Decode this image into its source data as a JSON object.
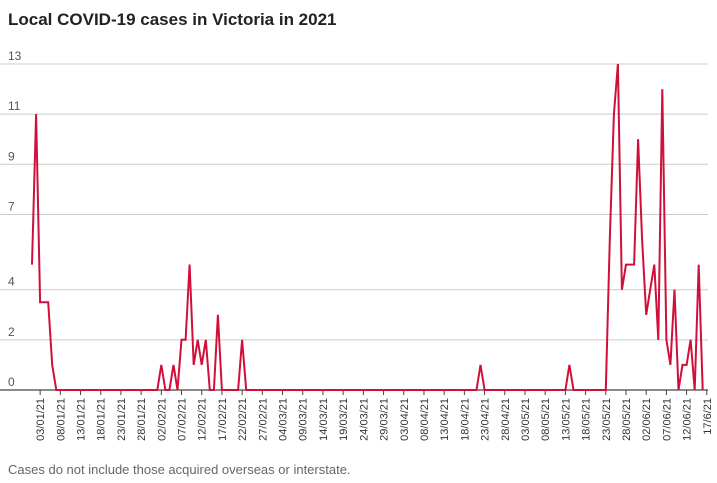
{
  "title": "Local COVID-19 cases in Victoria in 2021",
  "footnote": "Cases do not include those acquired overseas or interstate.",
  "colors": {
    "line": "#d0103a",
    "grid": "#cccccc",
    "text": "#222222",
    "axis": "#444444"
  },
  "chart_data": {
    "type": "line",
    "title": "Local COVID-19 cases in Victoria in 2021",
    "xlabel": "",
    "ylabel": "",
    "ylim": [
      0,
      13
    ],
    "yticks": [
      0,
      2,
      4,
      7,
      9,
      11,
      13
    ],
    "grid": true,
    "x_start": "01/01/21",
    "x_end": "17/6/21",
    "xticks": [
      {
        "label": "03/01/21",
        "day": 3
      },
      {
        "label": "08/01/21",
        "day": 8
      },
      {
        "label": "13/01/21",
        "day": 13
      },
      {
        "label": "18/01/21",
        "day": 18
      },
      {
        "label": "23/01/21",
        "day": 23
      },
      {
        "label": "28/01/21",
        "day": 28
      },
      {
        "label": "02/02/21",
        "day": 33
      },
      {
        "label": "07/02/21",
        "day": 38
      },
      {
        "label": "12/02/21",
        "day": 43
      },
      {
        "label": "17/02/21",
        "day": 48
      },
      {
        "label": "22/02/21",
        "day": 53
      },
      {
        "label": "27/02/21",
        "day": 58
      },
      {
        "label": "04/03/21",
        "day": 63
      },
      {
        "label": "09/03/21",
        "day": 68
      },
      {
        "label": "14/03/21",
        "day": 73
      },
      {
        "label": "19/03/21",
        "day": 78
      },
      {
        "label": "24/03/21",
        "day": 83
      },
      {
        "label": "29/03/21",
        "day": 88
      },
      {
        "label": "03/04/21",
        "day": 93
      },
      {
        "label": "08/04/21",
        "day": 98
      },
      {
        "label": "13/04/21",
        "day": 103
      },
      {
        "label": "18/04/21",
        "day": 108
      },
      {
        "label": "23/04/21",
        "day": 113
      },
      {
        "label": "28/04/21",
        "day": 118
      },
      {
        "label": "03/05/21",
        "day": 123
      },
      {
        "label": "08/05/21",
        "day": 128
      },
      {
        "label": "13/05/21",
        "day": 133
      },
      {
        "label": "18/05/21",
        "day": 138
      },
      {
        "label": "23/05/21",
        "day": 143
      },
      {
        "label": "28/05/21",
        "day": 148
      },
      {
        "label": "02/06/21",
        "day": 153
      },
      {
        "label": "07/06/21",
        "day": 158
      },
      {
        "label": "12/06/21",
        "day": 163
      },
      {
        "label": "17/6/21",
        "day": 168
      }
    ],
    "series": [
      {
        "points": [
          [
            1,
            5
          ],
          [
            2,
            11
          ],
          [
            3,
            3.5
          ],
          [
            4,
            3.5
          ],
          [
            5,
            3.5
          ],
          [
            6,
            1
          ],
          [
            7,
            0
          ],
          [
            32,
            0
          ],
          [
            33,
            1
          ],
          [
            34,
            0
          ],
          [
            35,
            0
          ],
          [
            36,
            1
          ],
          [
            37,
            0
          ],
          [
            38,
            2
          ],
          [
            39,
            2
          ],
          [
            40,
            5
          ],
          [
            41,
            1
          ],
          [
            42,
            2
          ],
          [
            43,
            1
          ],
          [
            44,
            2
          ],
          [
            45,
            0
          ],
          [
            46,
            0
          ],
          [
            47,
            3
          ],
          [
            48,
            0
          ],
          [
            52,
            0
          ],
          [
            53,
            2
          ],
          [
            54,
            0
          ],
          [
            111,
            0
          ],
          [
            112,
            1
          ],
          [
            113,
            0
          ],
          [
            133,
            0
          ],
          [
            134,
            1
          ],
          [
            135,
            0
          ],
          [
            143,
            0
          ],
          [
            144,
            6
          ],
          [
            145,
            11
          ],
          [
            146,
            13
          ],
          [
            147,
            4
          ],
          [
            148,
            5
          ],
          [
            149,
            5
          ],
          [
            150,
            5
          ],
          [
            151,
            10
          ],
          [
            152,
            6
          ],
          [
            153,
            3
          ],
          [
            154,
            4
          ],
          [
            155,
            5
          ],
          [
            156,
            2
          ],
          [
            157,
            12
          ],
          [
            158,
            2
          ],
          [
            159,
            1
          ],
          [
            160,
            4
          ],
          [
            161,
            0
          ],
          [
            162,
            1
          ],
          [
            163,
            1
          ],
          [
            164,
            2
          ],
          [
            165,
            0
          ],
          [
            166,
            5
          ],
          [
            167,
            0
          ]
        ]
      }
    ]
  }
}
